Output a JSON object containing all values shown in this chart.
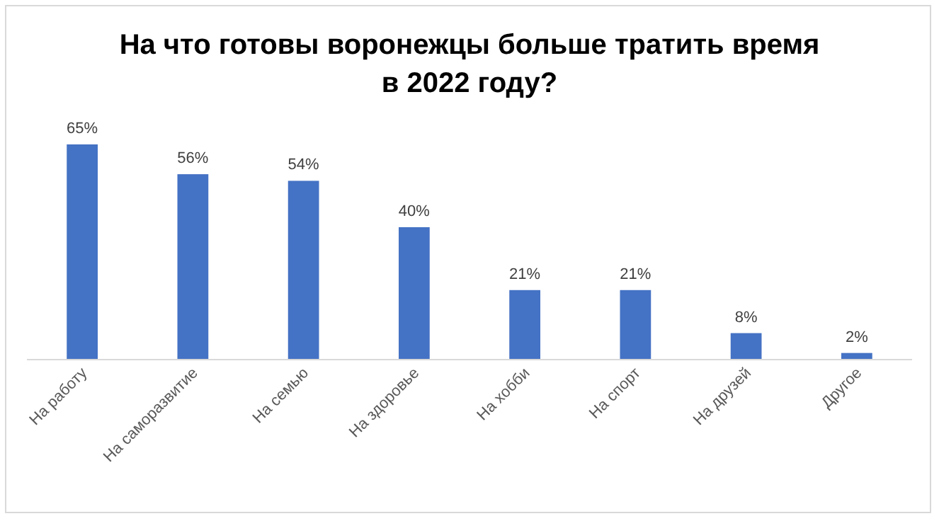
{
  "chart_data": {
    "type": "bar",
    "title": "На что готовы воронежцы больше тратить время\nв 2022 году?",
    "categories": [
      "На работу",
      "На саморазвитие",
      "На семью",
      "На здоровье",
      "На хобби",
      "На спорт",
      "На друзей",
      "Другое"
    ],
    "values": [
      65,
      56,
      54,
      40,
      21,
      21,
      8,
      2
    ],
    "value_labels": [
      "65%",
      "56%",
      "54%",
      "40%",
      "21%",
      "21%",
      "8%",
      "2%"
    ],
    "color": "#4472c4"
  }
}
